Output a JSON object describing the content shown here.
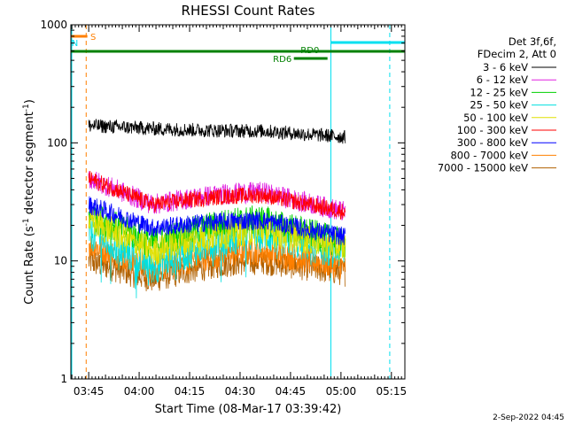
{
  "chart_data": {
    "type": "line",
    "title": "RHESSI Count Rates",
    "xlabel": "Start Time (08-Mar-17 03:39:42)",
    "ylabel_main": "Count Rate (s",
    "ylabel_sup1": "-1",
    "ylabel_mid": " detector segment",
    "ylabel_sup2": "-1",
    "ylabel_end": ")",
    "y_scale": "log",
    "ylim": [
      1,
      1000
    ],
    "xlim": [
      "03:39:42",
      "05:19:00"
    ],
    "x_ticks": [
      "03:45",
      "04:00",
      "04:15",
      "04:30",
      "04:45",
      "05:00",
      "05:15"
    ],
    "y_ticks": [
      "1",
      "10",
      "100",
      "1000"
    ],
    "timestamp": "2-Sep-2022 04:45",
    "legend": {
      "header1": "Det 3f,6f,",
      "header2": "FDecim 2, Att 0",
      "placement": "right"
    },
    "series": [
      {
        "name": "3 - 6 keV",
        "color": "#000000",
        "start": 1591,
        "end": 1622,
        "base": 140,
        "mid": 132,
        "peak": 126,
        "final": 112,
        "amp": 0.06
      },
      {
        "name": "6 - 12 keV",
        "color": "#e020e0",
        "start": 1591,
        "end": 1622,
        "base": 50,
        "mid": 30,
        "peak": 38,
        "final": 26,
        "amp": 0.09
      },
      {
        "name": "12 - 25 keV",
        "color": "#00d000",
        "start": 1591,
        "end": 1622,
        "base": 25,
        "mid": 14,
        "peak": 22,
        "final": 14,
        "amp": 0.13
      },
      {
        "name": "25 - 50 keV",
        "color": "#00e0e0",
        "start": 1591,
        "end": 1622,
        "base": 18,
        "mid": 9,
        "peak": 17,
        "final": 12,
        "amp": 0.16
      },
      {
        "name": "50 - 100 keV",
        "color": "#e0e000",
        "start": 1591,
        "end": 1622,
        "base": 22,
        "mid": 12,
        "peak": 18,
        "final": 13,
        "amp": 0.13
      },
      {
        "name": "100 - 300 keV",
        "color": "#ff0000",
        "start": 1591,
        "end": 1622,
        "base": 50,
        "mid": 30,
        "peak": 36,
        "final": 26,
        "amp": 0.07
      },
      {
        "name": "300 - 800 keV",
        "color": "#0000ff",
        "start": 1591,
        "end": 1622,
        "base": 30,
        "mid": 19,
        "peak": 22,
        "final": 16,
        "amp": 0.08
      },
      {
        "name": "800 - 7000 keV",
        "color": "#ff8000",
        "start": 1591,
        "end": 1622,
        "base": 14,
        "mid": 8.5,
        "peak": 12,
        "final": 9,
        "amp": 0.12
      },
      {
        "name": "7000 - 15000 keV",
        "color": "#b06000",
        "start": 1591,
        "end": 1622,
        "base": 10,
        "mid": 7,
        "peak": 10,
        "final": 8,
        "amp": 0.12
      }
    ],
    "annotations": {
      "saa_label": "S",
      "night_label": "N",
      "rd0_label": "RD0",
      "rd6_label": "RD6",
      "saa_color": "#ff7f00",
      "night_color": "#00e0f0",
      "rd_color": "#008000"
    }
  }
}
